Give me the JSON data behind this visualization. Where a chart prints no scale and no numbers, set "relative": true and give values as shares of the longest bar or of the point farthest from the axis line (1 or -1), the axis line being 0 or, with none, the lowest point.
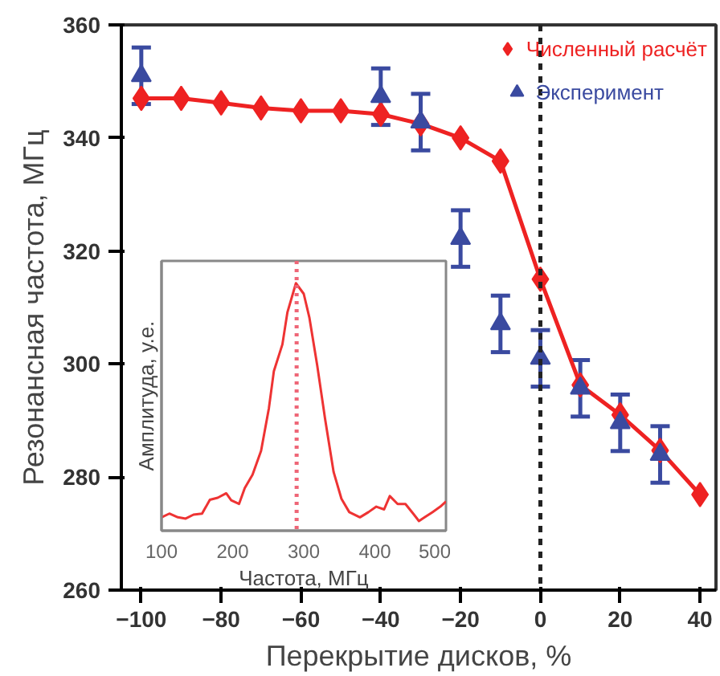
{
  "chart_data": [
    {
      "type": "line",
      "xlabel": "Перекрытие дисков, %",
      "ylabel": "Резонансная частота, МГц",
      "xlim": [
        -105,
        44
      ],
      "ylim": [
        260,
        360
      ],
      "xticks": [
        -100,
        -80,
        -60,
        -40,
        -20,
        0,
        20,
        40
      ],
      "yticks": [
        260,
        280,
        300,
        320,
        340,
        360
      ],
      "grid": false,
      "legend": "top right",
      "ref_lines": [
        {
          "axis": "x",
          "value": 0,
          "color": "#222222",
          "line_style": "dashed"
        }
      ],
      "series": [
        {
          "name": "Численный расчёт",
          "type": "line",
          "marker": "diamond",
          "color": "#ee2222",
          "x": [
            -100,
            -90,
            -80,
            -70,
            -60,
            -50,
            -40,
            -30,
            -20,
            -10,
            0,
            10,
            20,
            30,
            40
          ],
          "values": [
            347,
            347,
            346.2,
            345.3,
            344.8,
            344.8,
            344.2,
            342.5,
            340,
            335.9,
            315,
            296.3,
            291,
            284.7,
            276.9
          ]
        },
        {
          "name": "Эксперимент",
          "type": "scatter",
          "marker": "triangle",
          "color": "#3a4aa0",
          "x": [
            -100,
            -40,
            -30,
            -20,
            -10,
            0,
            10,
            20,
            30
          ],
          "values": [
            351,
            347.3,
            342.8,
            322.2,
            307.1,
            301,
            295.7,
            289.6,
            284
          ],
          "errors": [
            5,
            5,
            5,
            5,
            5,
            5,
            5,
            5,
            5
          ]
        }
      ]
    },
    {
      "type": "line",
      "xlabel": "Частота, МГц",
      "ylabel": "Амплитуда, у.е.",
      "relative": true,
      "xlim": [
        100,
        500
      ],
      "xticks": [
        100,
        200,
        300,
        400,
        500
      ],
      "grid": false,
      "tick_labels": "x",
      "ref_lines": [
        {
          "axis": "x",
          "value": 290,
          "color": "#ee6677",
          "line_style": "dotted"
        }
      ],
      "x": [
        100,
        111,
        123,
        134,
        145,
        157,
        168,
        179,
        191,
        198,
        209,
        217,
        228,
        240,
        251,
        258,
        270,
        277,
        289,
        300,
        308,
        319,
        330,
        342,
        353,
        364,
        379,
        391,
        402,
        413,
        421,
        432,
        443,
        455,
        462,
        470,
        481,
        492,
        500
      ],
      "series": [
        {
          "color": "#ee3333",
          "values": [
            0.054,
            0.069,
            0.054,
            0.049,
            0.065,
            0.069,
            0.125,
            0.133,
            0.151,
            0.123,
            0.108,
            0.172,
            0.226,
            0.323,
            0.495,
            0.645,
            0.753,
            0.882,
            1,
            0.957,
            0.86,
            0.667,
            0.452,
            0.237,
            0.129,
            0.075,
            0.054,
            0.075,
            0.097,
            0.086,
            0.14,
            0.108,
            0.108,
            0.065,
            0.039,
            0.054,
            0.075,
            0.097,
            0.118
          ]
        }
      ]
    }
  ]
}
